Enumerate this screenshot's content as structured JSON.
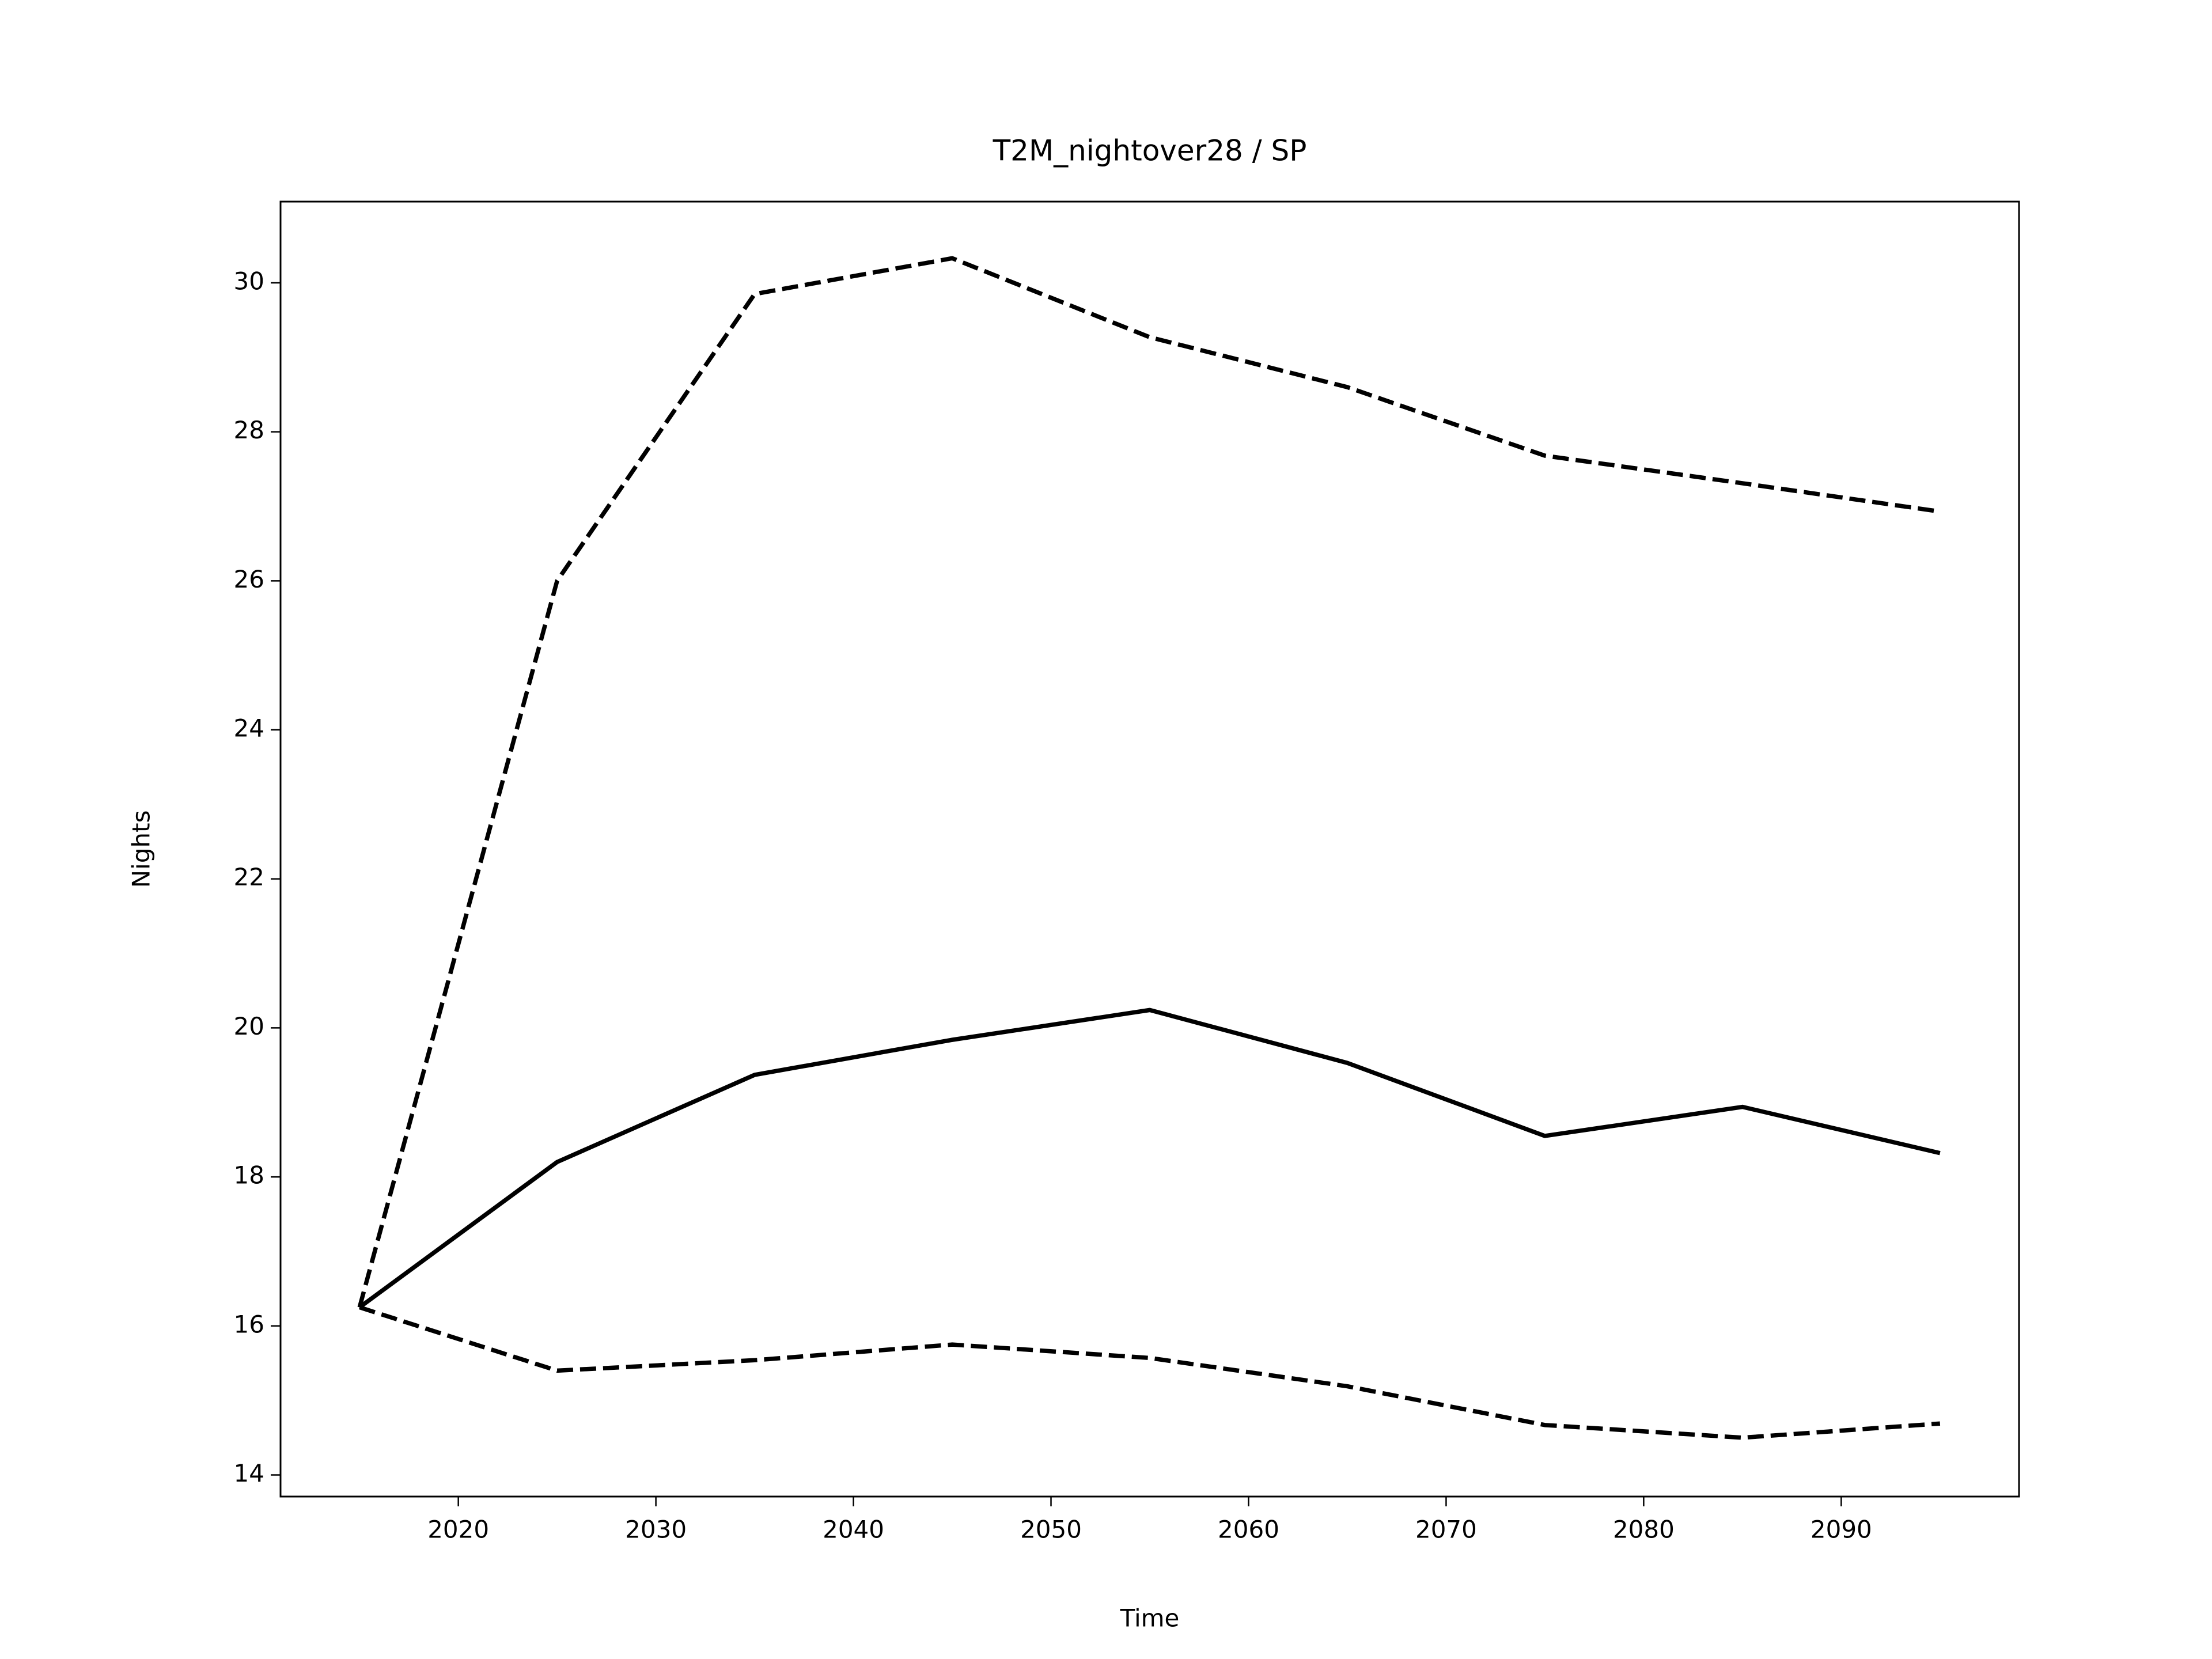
{
  "chart_data": {
    "type": "line",
    "title": "T2M_nightover28 / SP",
    "xlabel": "Time",
    "ylabel": "Nights",
    "x": [
      2015,
      2025,
      2035,
      2045,
      2055,
      2065,
      2075,
      2085,
      2095
    ],
    "series": [
      {
        "color": "#000000",
        "style": "solid",
        "values": [
          16.25,
          18.2,
          19.37,
          19.84,
          20.24,
          19.53,
          18.55,
          18.94,
          18.32
        ]
      },
      {
        "color": "#000000",
        "style": "dashed",
        "values": [
          16.25,
          26.0,
          29.85,
          30.33,
          29.27,
          28.6,
          27.68,
          27.31,
          26.93
        ]
      },
      {
        "color": "#000000",
        "style": "dashed",
        "values": [
          16.25,
          15.4,
          15.54,
          15.75,
          15.57,
          15.19,
          14.67,
          14.5,
          14.69
        ]
      }
    ],
    "xlim": [
      2011,
      2099
    ],
    "xticks": [
      2020,
      2030,
      2040,
      2050,
      2060,
      2070,
      2080,
      2090
    ],
    "ylim": [
      13.71,
      31.09
    ],
    "yticks": [
      14,
      16,
      18,
      20,
      22,
      24,
      26,
      28,
      30
    ],
    "grid": false
  }
}
